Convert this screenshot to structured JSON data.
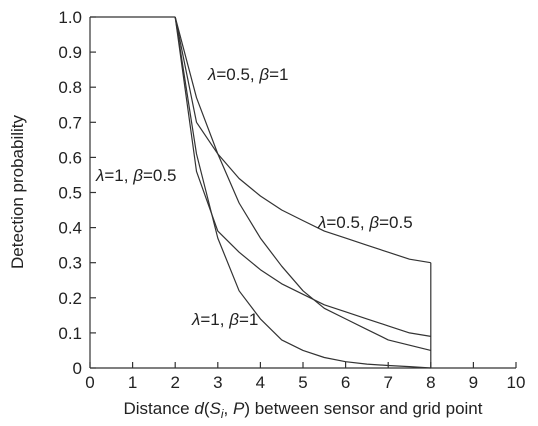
{
  "chart_data": {
    "type": "line",
    "title": "",
    "xlabel": {
      "prefix": "Distance ",
      "d": "d",
      "paren_open": "(",
      "s": "S",
      "sub_i": "i",
      "comma": ", ",
      "p": "P",
      "suffix": ") between sensor and grid point"
    },
    "ylabel": "Detection probability",
    "xlim": [
      0,
      10
    ],
    "ylim": [
      0,
      1
    ],
    "xticks": [
      "0",
      "1",
      "2",
      "3",
      "4",
      "5",
      "6",
      "7",
      "8",
      "9",
      "10"
    ],
    "yticks": [
      "0",
      "0.1",
      "0.2",
      "0.3",
      "0.4",
      "0.5",
      "0.6",
      "0.7",
      "0.8",
      "0.9",
      "1.0"
    ],
    "grid": false,
    "model": {
      "r1": 2,
      "r2": 8,
      "plateau_x": [
        0,
        2
      ],
      "plateau_y": 1
    },
    "series": [
      {
        "lambda": "0.5",
        "beta": "1",
        "x": [
          2,
          2.5,
          3,
          3.5,
          4,
          4.5,
          5,
          5.5,
          6,
          6.5,
          7,
          7.5,
          8
        ],
        "y": [
          1.0,
          0.77,
          0.61,
          0.47,
          0.37,
          0.29,
          0.22,
          0.17,
          0.14,
          0.11,
          0.08,
          0.065,
          0.05
        ]
      },
      {
        "lambda": "0.5",
        "beta": "0.5",
        "x": [
          2,
          2.5,
          3,
          3.5,
          4,
          4.5,
          5,
          5.5,
          6,
          6.5,
          7,
          7.5,
          8
        ],
        "y": [
          1.0,
          0.7,
          0.61,
          0.54,
          0.49,
          0.45,
          0.42,
          0.39,
          0.37,
          0.35,
          0.33,
          0.31,
          0.3
        ]
      },
      {
        "lambda": "1",
        "beta": "0.5",
        "x": [
          2,
          2.5,
          3,
          3.5,
          4,
          4.5,
          5,
          5.5,
          6,
          6.5,
          7,
          7.5,
          8
        ],
        "y": [
          1.0,
          0.56,
          0.39,
          0.33,
          0.28,
          0.24,
          0.21,
          0.18,
          0.16,
          0.14,
          0.12,
          0.1,
          0.09
        ]
      },
      {
        "lambda": "1",
        "beta": "1",
        "x": [
          2,
          2.5,
          3,
          3.5,
          4,
          4.5,
          5,
          5.5,
          6,
          6.5,
          7,
          7.5,
          8
        ],
        "y": [
          1.0,
          0.61,
          0.37,
          0.22,
          0.14,
          0.08,
          0.05,
          0.03,
          0.018,
          0.011,
          0.007,
          0.004,
          0.0
        ]
      }
    ],
    "annotations": [
      {
        "lambda_sym": "λ",
        "lambda_val": "=0.5, ",
        "beta_sym": "β",
        "beta_val": "=1"
      },
      {
        "lambda_sym": "λ",
        "lambda_val": "=1, ",
        "beta_sym": "β",
        "beta_val": "=0.5"
      },
      {
        "lambda_sym": "λ",
        "lambda_val": "=0.5, ",
        "beta_sym": "β",
        "beta_val": "=0.5"
      },
      {
        "lambda_sym": "λ",
        "lambda_val": "=1, ",
        "beta_sym": "β",
        "beta_val": "=1"
      }
    ]
  }
}
